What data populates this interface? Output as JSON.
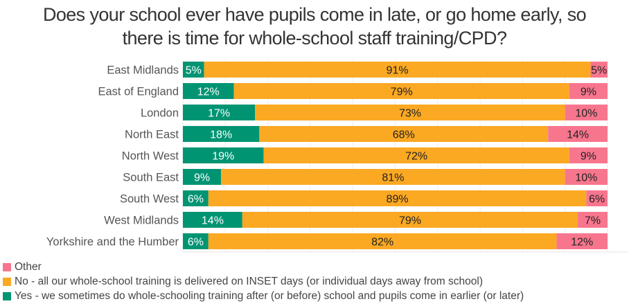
{
  "chart_data": {
    "type": "bar",
    "orientation": "horizontal",
    "stacked": true,
    "title": "Does your school ever have pupils come in late, or go home early, so there is time for whole-school staff training/CPD?",
    "title_lines": [
      "Does your school ever have pupils come in late, or go home early, so",
      "there is time for whole-school staff training/CPD?"
    ],
    "xlabel": "",
    "ylabel": "",
    "xlim": [
      0,
      100
    ],
    "grid": true,
    "legend_position": "bottom-left",
    "categories": [
      "East Midlands",
      "East of England",
      "London",
      "North East",
      "North West",
      "South East",
      "South West",
      "West Midlands",
      "Yorkshire and the Humber"
    ],
    "series": [
      {
        "name": "Yes - we sometimes do whole-schooling training after (or before) school and pupils come in earlier (or later)",
        "color": "#009473",
        "label_color": "#ffffff",
        "values": [
          5,
          12,
          17,
          18,
          19,
          9,
          6,
          14,
          6
        ]
      },
      {
        "name": "No - all our whole-school training is delivered on INSET days (or individual days away from school)",
        "color": "#FBA823",
        "label_color": "#222222",
        "values": [
          91,
          79,
          73,
          68,
          72,
          81,
          89,
          79,
          82
        ]
      },
      {
        "name": "Other",
        "color": "#F7768E",
        "label_color": "#222222",
        "values": [
          5,
          9,
          10,
          14,
          9,
          10,
          6,
          7,
          12
        ]
      }
    ],
    "legend_order": [
      "Other",
      "No - all our whole-school training is delivered on INSET days (or individual days away from school)",
      "Yes - we sometimes do whole-schooling training after (or before) school and pupils come in earlier (or later)"
    ],
    "value_suffix": "%"
  }
}
